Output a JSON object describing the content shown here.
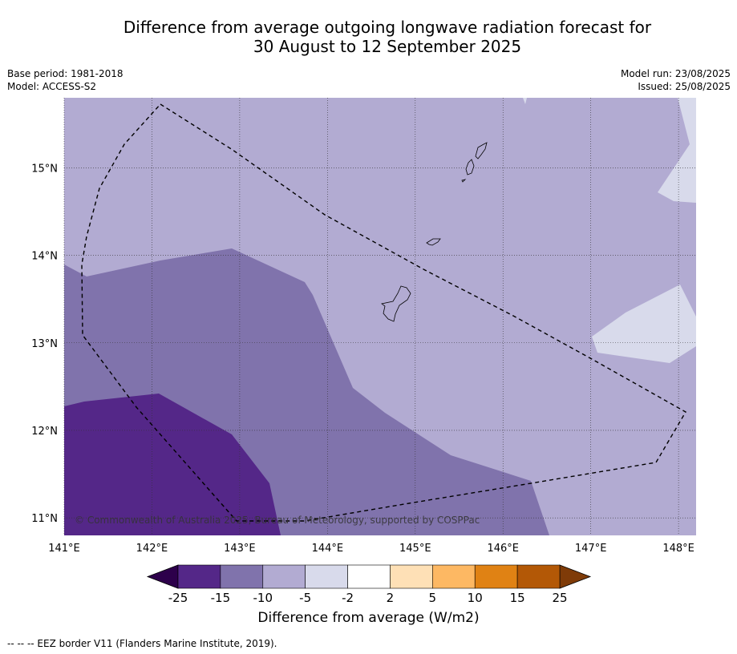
{
  "title": {
    "line1": "Difference from average outgoing longwave radiation forecast for",
    "line2": "30 August to 12 September 2025"
  },
  "meta": {
    "base_period": "Base period: 1981-2018",
    "model": "Model: ACCESS-S2",
    "model_run": "Model run: 23/08/2025",
    "issued": "Issued: 25/08/2025"
  },
  "map": {
    "lon_range": [
      141.0,
      148.2
    ],
    "lat_range": [
      10.8,
      15.8
    ],
    "lon_ticks": [
      "141°E",
      "142°E",
      "143°E",
      "144°E",
      "145°E",
      "146°E",
      "147°E",
      "148°E"
    ],
    "lat_ticks": [
      "15°N",
      "14°N",
      "13°N",
      "12°N",
      "11°N"
    ],
    "copyright": "© Commonwealth of Australia 2025, Bureau of Meteorology, supported by COSPPac"
  },
  "colorbar": {
    "title": "Difference from average (W/m2)",
    "tick_labels": [
      "-25",
      "-15",
      "-10",
      "-5",
      "-2",
      "2",
      "5",
      "10",
      "15",
      "25"
    ],
    "colors": {
      "under": "#2d004b",
      "bins": [
        "#542788",
        "#8073ac",
        "#b2abd2",
        "#d8daeb",
        "#ffffff",
        "#fee0b6",
        "#fdb863",
        "#e08214",
        "#b35806"
      ],
      "over": "#7f3b08"
    }
  },
  "footnote": "-- -- -- EEZ border V11 (Flanders Marine Institute, 2019)."
}
